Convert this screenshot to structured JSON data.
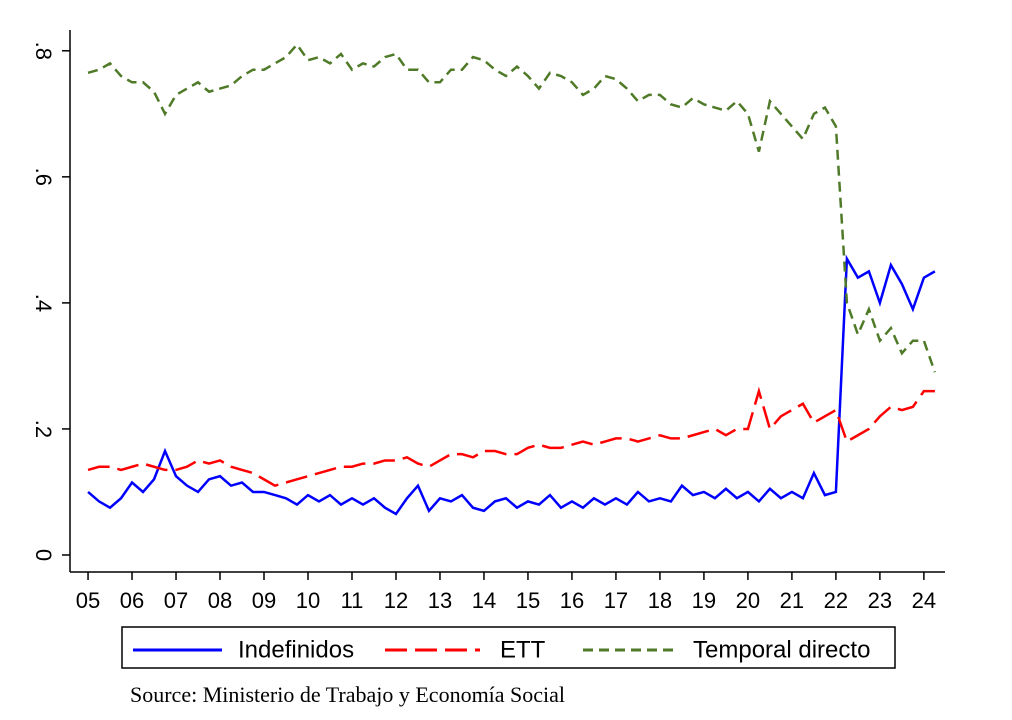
{
  "chart_data": {
    "type": "line",
    "x": [
      2005,
      2005.25,
      2005.5,
      2005.75,
      2006,
      2006.25,
      2006.5,
      2006.75,
      2007,
      2007.25,
      2007.5,
      2007.75,
      2008,
      2008.25,
      2008.5,
      2008.75,
      2009,
      2009.25,
      2009.5,
      2009.75,
      2010,
      2010.25,
      2010.5,
      2010.75,
      2011,
      2011.25,
      2011.5,
      2011.75,
      2012,
      2012.25,
      2012.5,
      2012.75,
      2013,
      2013.25,
      2013.5,
      2013.75,
      2014,
      2014.25,
      2014.5,
      2014.75,
      2015,
      2015.25,
      2015.5,
      2015.75,
      2016,
      2016.25,
      2016.5,
      2016.75,
      2017,
      2017.25,
      2017.5,
      2017.75,
      2018,
      2018.25,
      2018.5,
      2018.75,
      2019,
      2019.25,
      2019.5,
      2019.75,
      2020,
      2020.25,
      2020.5,
      2020.75,
      2021,
      2021.25,
      2021.5,
      2021.75,
      2022,
      2022.25,
      2022.5,
      2022.75,
      2023,
      2023.25,
      2023.5,
      2023.75,
      2024,
      2024.25
    ],
    "series": [
      {
        "name": "Indefinidos",
        "color": "#0000ff",
        "line_style": "solid",
        "values": [
          0.1,
          0.085,
          0.075,
          0.09,
          0.115,
          0.1,
          0.12,
          0.165,
          0.125,
          0.11,
          0.1,
          0.12,
          0.125,
          0.11,
          0.115,
          0.1,
          0.1,
          0.095,
          0.09,
          0.08,
          0.095,
          0.085,
          0.095,
          0.08,
          0.09,
          0.08,
          0.09,
          0.075,
          0.065,
          0.09,
          0.11,
          0.07,
          0.09,
          0.085,
          0.095,
          0.075,
          0.07,
          0.085,
          0.09,
          0.075,
          0.085,
          0.08,
          0.095,
          0.075,
          0.085,
          0.075,
          0.09,
          0.08,
          0.09,
          0.08,
          0.1,
          0.085,
          0.09,
          0.085,
          0.11,
          0.095,
          0.1,
          0.09,
          0.105,
          0.09,
          0.1,
          0.085,
          0.105,
          0.09,
          0.1,
          0.09,
          0.13,
          0.095,
          0.1,
          0.47,
          0.44,
          0.45,
          0.4,
          0.46,
          0.43,
          0.39,
          0.44,
          0.45
        ]
      },
      {
        "name": "ETT",
        "color": "#ff0000",
        "line_style": "long-dash",
        "values": [
          0.135,
          0.14,
          0.14,
          0.135,
          0.14,
          0.145,
          0.14,
          0.135,
          0.135,
          0.14,
          0.15,
          0.145,
          0.15,
          0.14,
          0.135,
          0.13,
          0.12,
          0.11,
          0.115,
          0.12,
          0.125,
          0.13,
          0.135,
          0.14,
          0.14,
          0.145,
          0.145,
          0.15,
          0.15,
          0.155,
          0.145,
          0.14,
          0.15,
          0.16,
          0.16,
          0.155,
          0.165,
          0.165,
          0.16,
          0.16,
          0.17,
          0.175,
          0.17,
          0.17,
          0.175,
          0.18,
          0.175,
          0.18,
          0.185,
          0.185,
          0.18,
          0.185,
          0.19,
          0.185,
          0.185,
          0.19,
          0.195,
          0.2,
          0.19,
          0.2,
          0.2,
          0.26,
          0.2,
          0.22,
          0.23,
          0.24,
          0.21,
          0.22,
          0.23,
          0.18,
          0.19,
          0.2,
          0.22,
          0.235,
          0.23,
          0.235,
          0.26,
          0.26
        ]
      },
      {
        "name": "Temporal directo",
        "color": "#4f7a28",
        "line_style": "short-dash",
        "values": [
          0.765,
          0.77,
          0.78,
          0.76,
          0.75,
          0.75,
          0.735,
          0.7,
          0.73,
          0.74,
          0.75,
          0.735,
          0.74,
          0.745,
          0.76,
          0.77,
          0.77,
          0.78,
          0.79,
          0.81,
          0.785,
          0.79,
          0.78,
          0.795,
          0.77,
          0.78,
          0.775,
          0.79,
          0.795,
          0.77,
          0.77,
          0.75,
          0.75,
          0.77,
          0.77,
          0.79,
          0.785,
          0.77,
          0.76,
          0.775,
          0.76,
          0.74,
          0.765,
          0.76,
          0.75,
          0.73,
          0.74,
          0.76,
          0.755,
          0.74,
          0.72,
          0.73,
          0.73,
          0.715,
          0.71,
          0.725,
          0.715,
          0.71,
          0.705,
          0.72,
          0.7,
          0.64,
          0.72,
          0.7,
          0.68,
          0.66,
          0.7,
          0.71,
          0.68,
          0.4,
          0.35,
          0.39,
          0.34,
          0.36,
          0.32,
          0.34,
          0.34,
          0.29
        ]
      }
    ],
    "xlim": [
      2004.59,
      2024.48
    ],
    "xticks": [
      {
        "value": 2005,
        "label": "05"
      },
      {
        "value": 2006,
        "label": "06"
      },
      {
        "value": 2007,
        "label": "07"
      },
      {
        "value": 2008,
        "label": "08"
      },
      {
        "value": 2009,
        "label": "09"
      },
      {
        "value": 2010,
        "label": "10"
      },
      {
        "value": 2011,
        "label": "11"
      },
      {
        "value": 2012,
        "label": "12"
      },
      {
        "value": 2013,
        "label": "13"
      },
      {
        "value": 2014,
        "label": "14"
      },
      {
        "value": 2015,
        "label": "15"
      },
      {
        "value": 2016,
        "label": "16"
      },
      {
        "value": 2017,
        "label": "17"
      },
      {
        "value": 2018,
        "label": "18"
      },
      {
        "value": 2019,
        "label": "19"
      },
      {
        "value": 2020,
        "label": "20"
      },
      {
        "value": 2021,
        "label": "21"
      },
      {
        "value": 2022,
        "label": "22"
      },
      {
        "value": 2023,
        "label": "23"
      },
      {
        "value": 2024,
        "label": "24"
      }
    ],
    "ylim": [
      -0.027,
      0.833
    ],
    "yticks": [
      0,
      {
        "value": 0.2,
        "label": ".2"
      },
      {
        "value": 0.4,
        "label": ".4"
      },
      {
        "value": 0.6,
        "label": ".6"
      },
      {
        "value": 0.8,
        "label": ".8"
      }
    ],
    "grid": false,
    "legend": "bottom",
    "source": "Source: Ministerio de Trabajo y Economía Social"
  }
}
